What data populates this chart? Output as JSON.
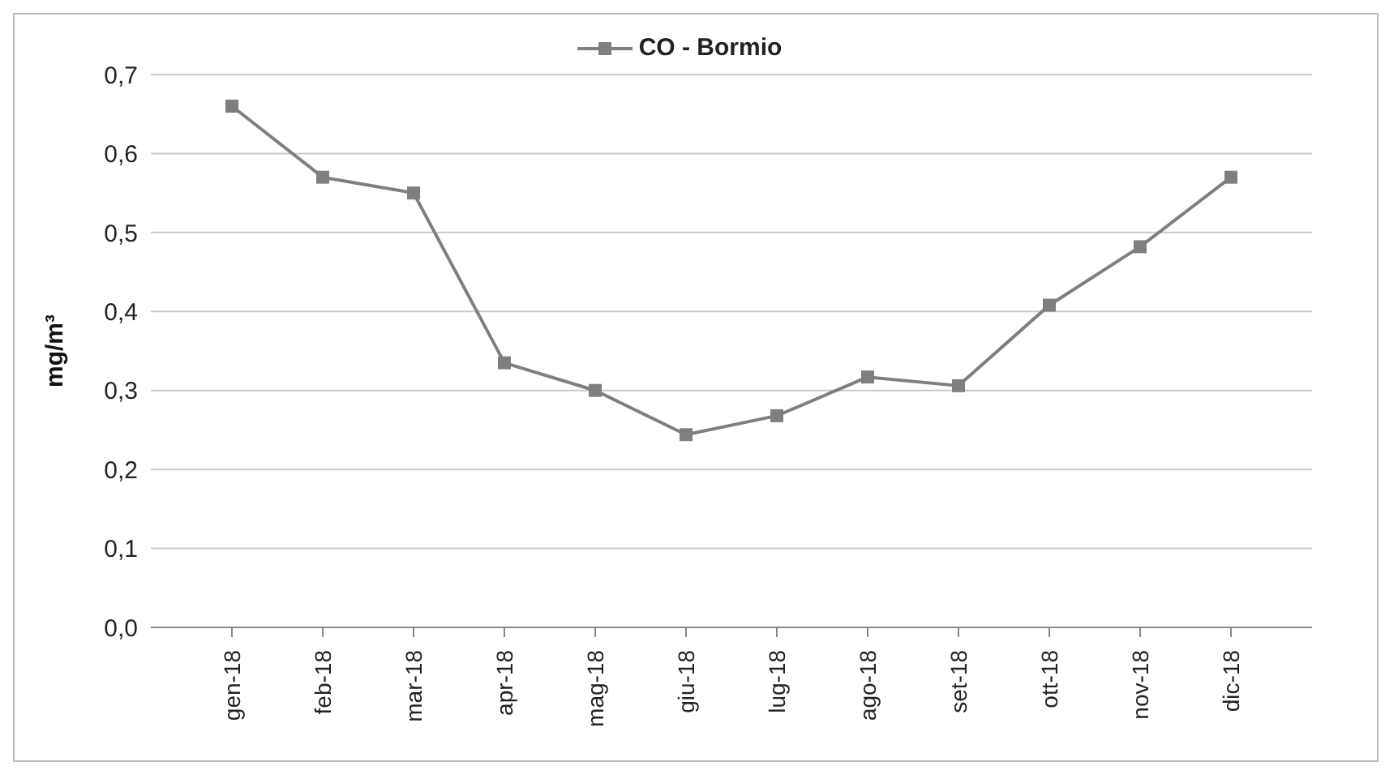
{
  "chart_data": {
    "type": "line",
    "ylabel": "mg/m³",
    "categories": [
      "gen-18",
      "feb-18",
      "mar-18",
      "apr-18",
      "mag-18",
      "giu-18",
      "lug-18",
      "ago-18",
      "set-18",
      "ott-18",
      "nov-18",
      "dic-18"
    ],
    "series": [
      {
        "name": "CO - Bormio",
        "color": "#7f7f7f",
        "values": [
          0.66,
          0.57,
          0.55,
          0.335,
          0.3,
          0.244,
          0.268,
          0.317,
          0.306,
          0.408,
          0.482,
          0.57
        ]
      }
    ],
    "ylim": [
      0,
      0.7
    ],
    "yticks": [
      {
        "value": 0,
        "label": "0,0"
      },
      {
        "value": 0.1,
        "label": "0,1"
      },
      {
        "value": 0.2,
        "label": "0,2"
      },
      {
        "value": 0.3,
        "label": "0,3"
      },
      {
        "value": 0.4,
        "label": "0,4"
      },
      {
        "value": 0.5,
        "label": "0,5"
      },
      {
        "value": 0.6,
        "label": "0,6"
      },
      {
        "value": 0.7,
        "label": "0,7"
      }
    ],
    "grid": "y",
    "legend": "top",
    "marker": "square",
    "line_style": "solid"
  }
}
